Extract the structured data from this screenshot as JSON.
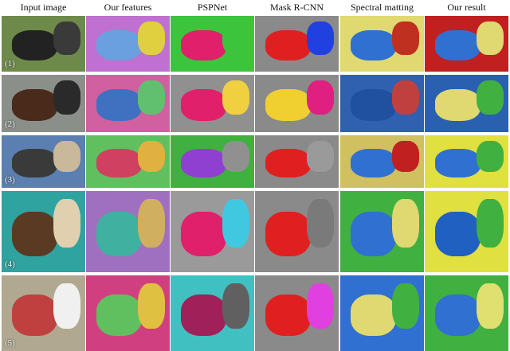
{
  "columns": [
    "Input image",
    "Our features",
    "PSPNet",
    "Mask R-CNN",
    "Spectral matting",
    "Our result"
  ],
  "rows": [
    "(1)",
    "(2)",
    "(3)",
    "(4)",
    "(5)"
  ]
}
